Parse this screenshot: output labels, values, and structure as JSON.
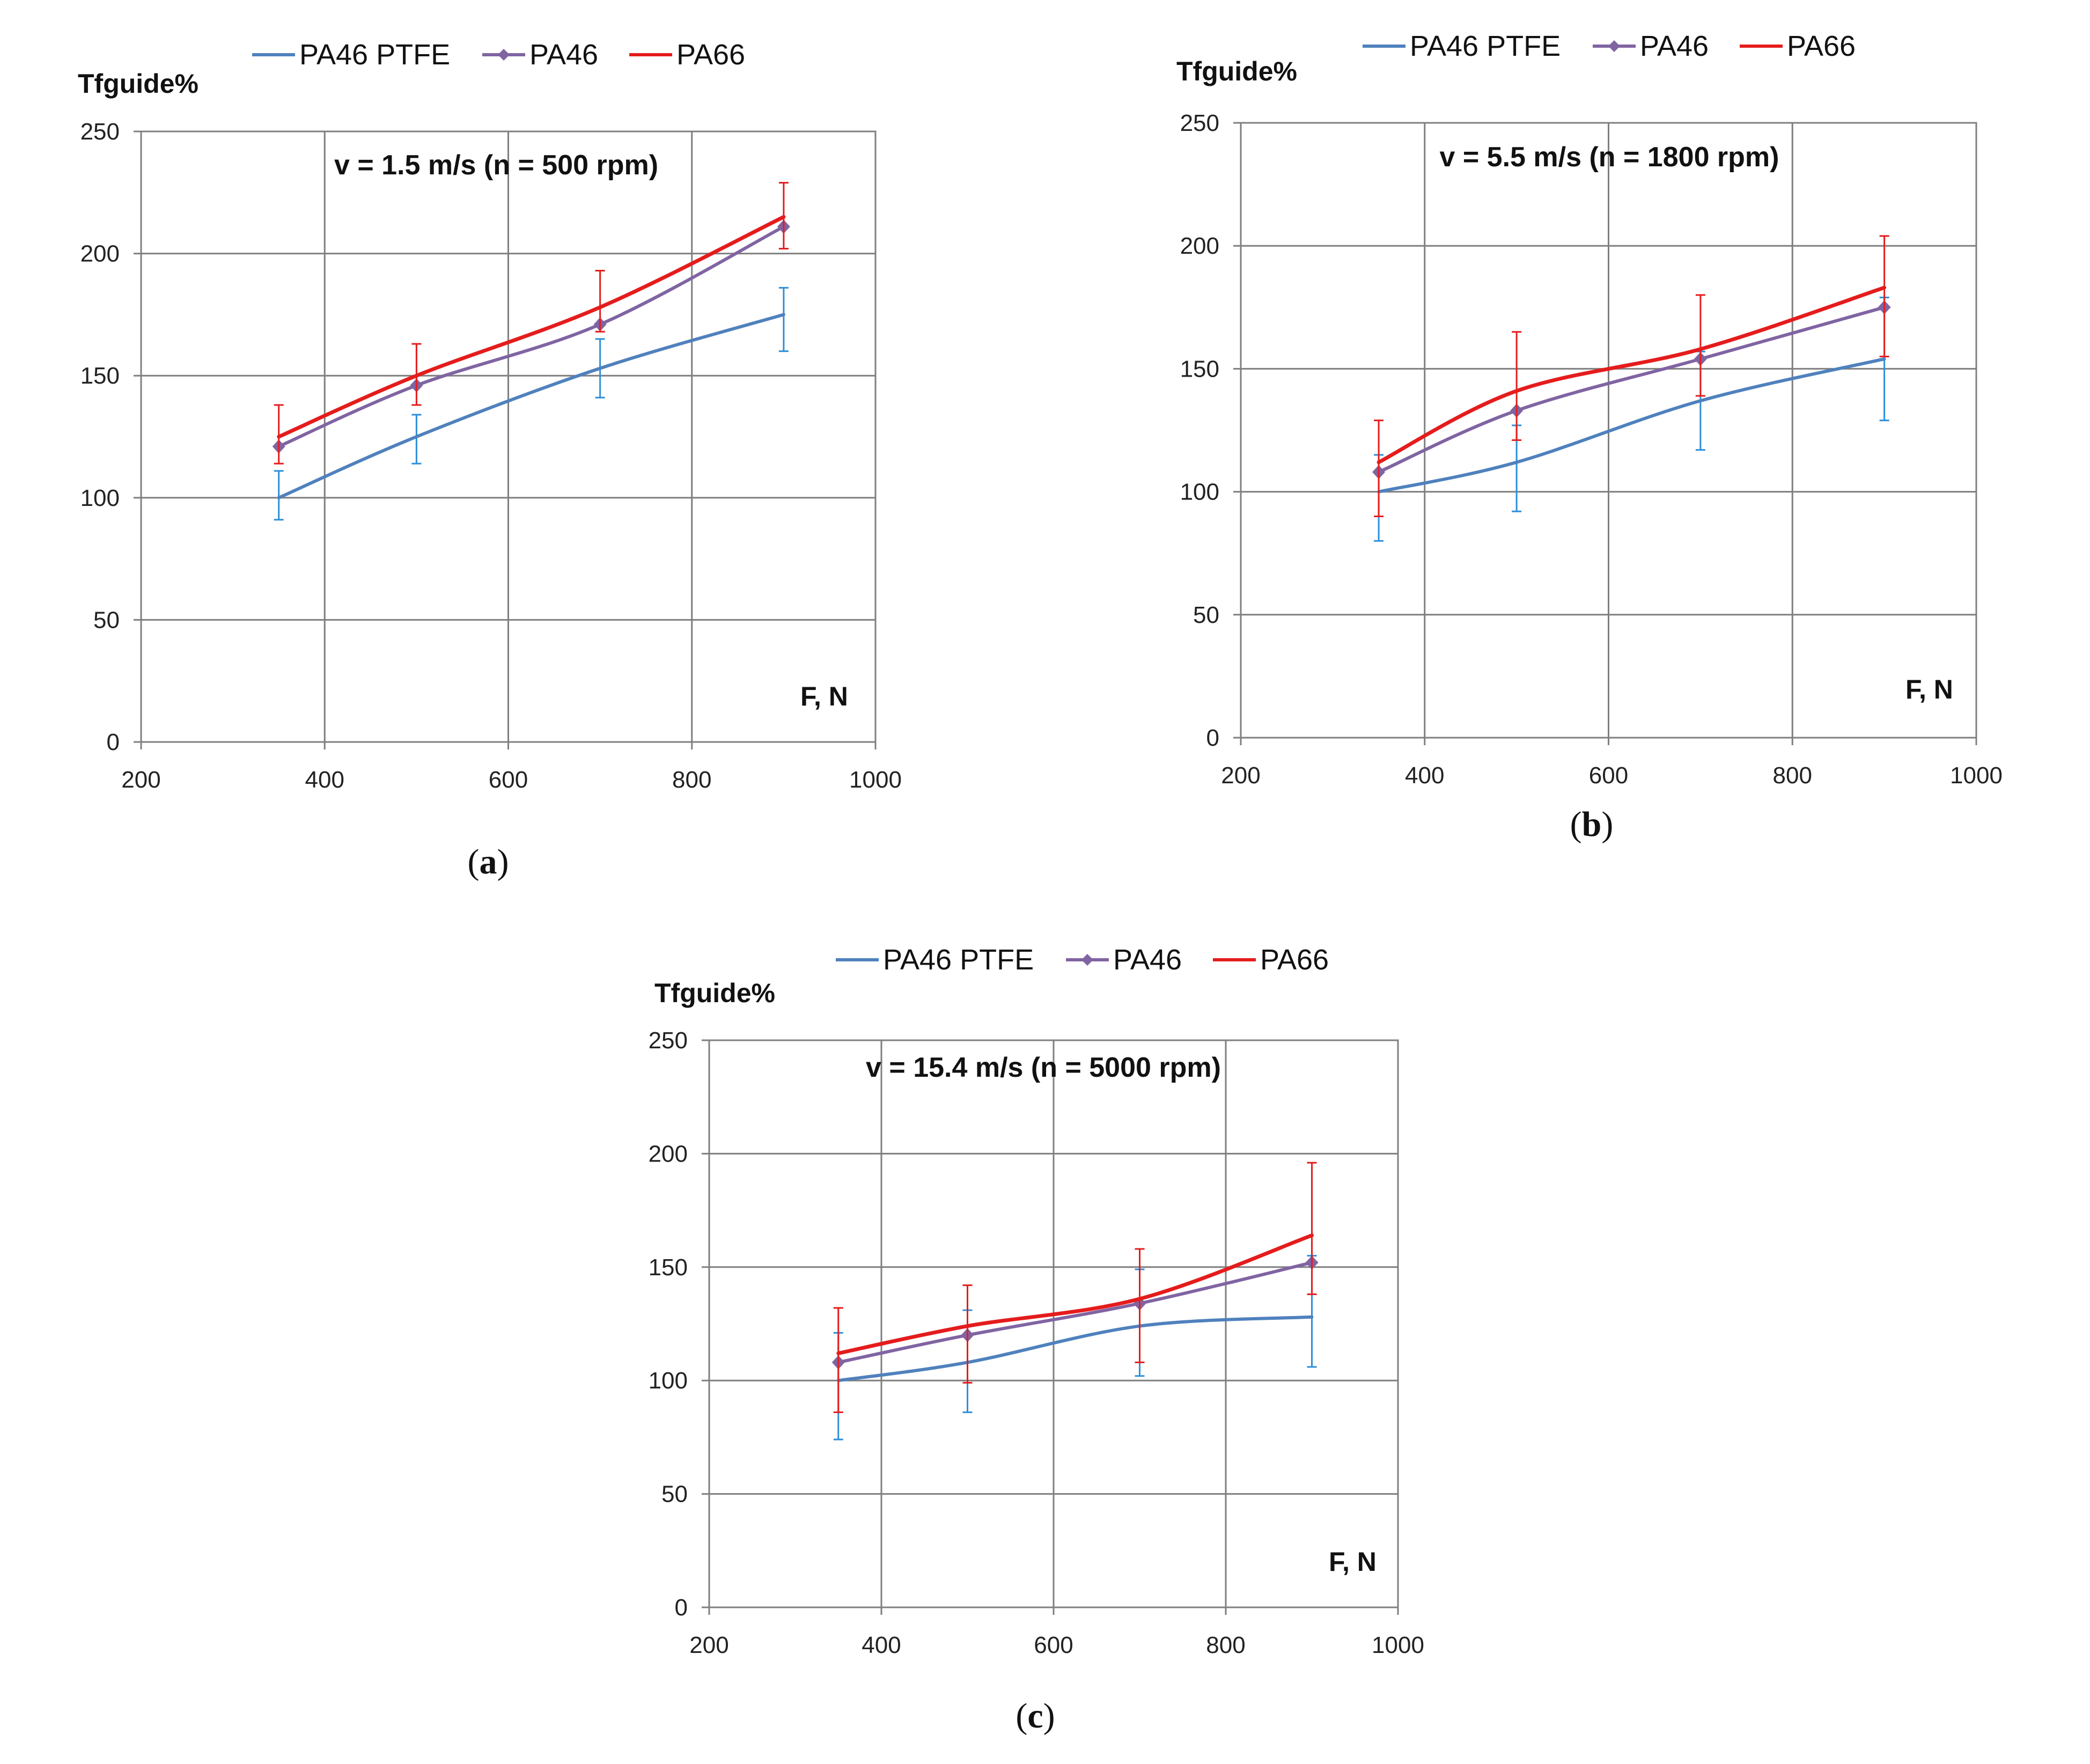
{
  "legend": [
    {
      "name": "PA46 PTFE",
      "color": "#4f81bd",
      "marker": "none"
    },
    {
      "name": "PA46",
      "color": "#8064a2",
      "marker": "diamond"
    },
    {
      "name": "PA66",
      "color": "#e51c1c",
      "marker": "none"
    }
  ],
  "colors": {
    "grid": "#7f7f7f",
    "err_ptfe": "#2e8fd8",
    "err_pa66": "#e51c1c"
  },
  "chart_data": [
    {
      "type": "line",
      "id": "a",
      "caption_open": "(",
      "caption_letter": "a",
      "caption_close": ")",
      "title": "v = 1.5 m/s (n = 500 rpm)",
      "ylabel": "Tfguide%",
      "xlabel": "F, N",
      "xlim": [
        200,
        1000
      ],
      "ylim": [
        0,
        250
      ],
      "xticks": [
        "200",
        "400",
        "600",
        "800",
        "1000"
      ],
      "yticks": [
        "0",
        "50",
        "100",
        "150",
        "200",
        "250"
      ],
      "grid": true,
      "legend_position": "top",
      "x": [
        350,
        500,
        700,
        900
      ],
      "series": [
        {
          "name": "PA46 PTFE",
          "values": [
            100,
            125,
            153,
            175
          ],
          "error_low": [
            91,
            114,
            141,
            160
          ],
          "error_high": [
            111,
            134,
            165,
            186
          ]
        },
        {
          "name": "PA46",
          "values": [
            121,
            146,
            171,
            211
          ]
        },
        {
          "name": "PA66",
          "values": [
            125,
            150,
            178,
            215
          ],
          "error_low": [
            114,
            138,
            168,
            202
          ],
          "error_high": [
            138,
            163,
            193,
            229
          ]
        }
      ]
    },
    {
      "type": "line",
      "id": "b",
      "caption_open": "(",
      "caption_letter": "b",
      "caption_close": ")",
      "title": "v = 5.5 m/s (n = 1800 rpm)",
      "ylabel": "Tfguide%",
      "xlabel": "F, N",
      "xlim": [
        200,
        1000
      ],
      "ylim": [
        0,
        250
      ],
      "xticks": [
        "200",
        "400",
        "600",
        "800",
        "1000"
      ],
      "yticks": [
        "0",
        "50",
        "100",
        "150",
        "200",
        "250"
      ],
      "grid": true,
      "legend_position": "top",
      "x": [
        350,
        500,
        700,
        900
      ],
      "series": [
        {
          "name": "PA46 PTFE",
          "values": [
            100,
            112,
            137,
            154
          ],
          "error_low": [
            80,
            92,
            117,
            129
          ],
          "error_high": [
            115,
            127,
            157,
            179
          ]
        },
        {
          "name": "PA46",
          "values": [
            108,
            133,
            154,
            175
          ]
        },
        {
          "name": "PA66",
          "values": [
            112,
            141,
            158,
            183
          ],
          "error_low": [
            90,
            121,
            139,
            155
          ],
          "error_high": [
            129,
            165,
            180,
            204
          ]
        }
      ]
    },
    {
      "type": "line",
      "id": "c",
      "caption_open": "(",
      "caption_letter": "c",
      "caption_close": ")",
      "title": "v = 15.4 m/s (n = 5000 rpm)",
      "ylabel": "Tfguide%",
      "xlabel": "F, N",
      "xlim": [
        200,
        1000
      ],
      "ylim": [
        0,
        250
      ],
      "xticks": [
        "200",
        "400",
        "600",
        "800",
        "1000"
      ],
      "yticks": [
        "0",
        "50",
        "100",
        "150",
        "200",
        "250"
      ],
      "grid": true,
      "legend_position": "top",
      "x": [
        350,
        500,
        700,
        900
      ],
      "series": [
        {
          "name": "PA46 PTFE",
          "values": [
            100,
            108,
            124,
            128
          ],
          "error_low": [
            74,
            86,
            102,
            106
          ],
          "error_high": [
            121,
            131,
            149,
            155
          ]
        },
        {
          "name": "PA46",
          "values": [
            108,
            120,
            134,
            152
          ]
        },
        {
          "name": "PA66",
          "values": [
            112,
            124,
            136,
            164
          ],
          "error_low": [
            86,
            99,
            108,
            138
          ],
          "error_high": [
            132,
            142,
            158,
            196
          ]
        }
      ]
    }
  ]
}
